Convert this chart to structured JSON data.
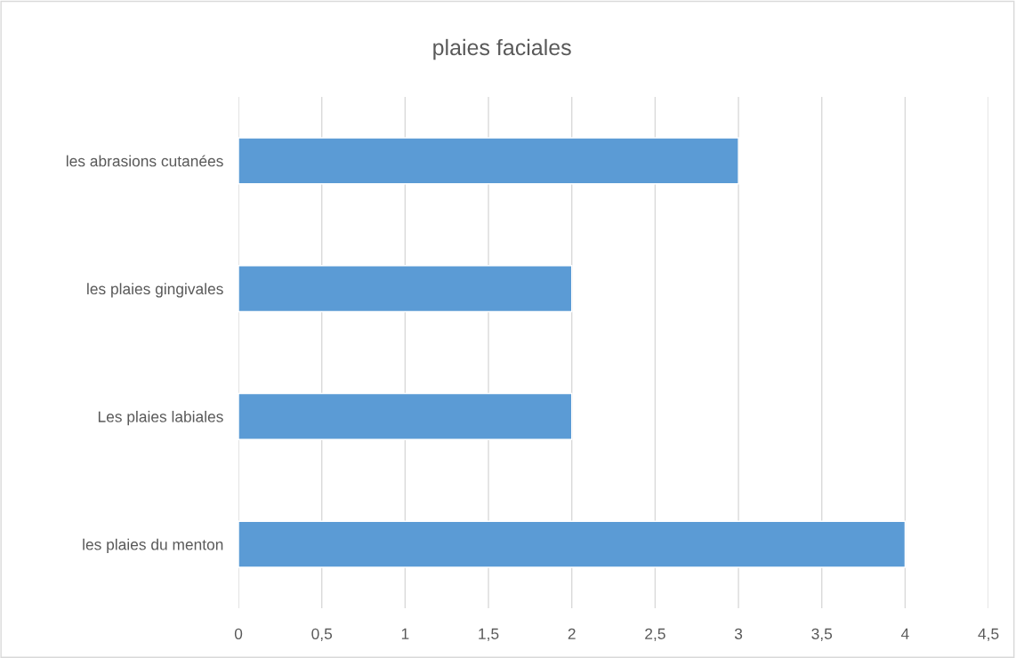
{
  "chart_data": {
    "type": "bar",
    "orientation": "horizontal",
    "title": "plaies faciales",
    "categories": [
      "les abrasions cutanées",
      "les plaies gingivales",
      "Les plaies labiales",
      "les plaies du menton"
    ],
    "values": [
      3,
      2,
      2,
      4
    ],
    "color": "#5b9bd5",
    "xlim": [
      0,
      4.5
    ],
    "xticks": [
      0,
      {
        "value": 0.5,
        "label": "0,5"
      },
      1,
      {
        "value": 1.5,
        "label": "1,5"
      },
      2,
      {
        "value": 2.5,
        "label": "2,5"
      },
      3,
      {
        "value": 3.5,
        "label": "3,5"
      },
      4,
      {
        "value": 4.5,
        "label": "4,5"
      }
    ],
    "grid": "x",
    "legend": false
  }
}
